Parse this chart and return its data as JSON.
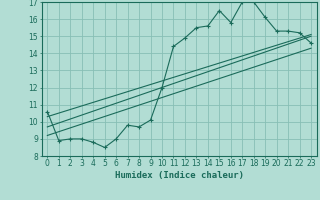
{
  "xlabel": "Humidex (Indice chaleur)",
  "bg_color": "#b2ddd4",
  "grid_color": "#88bfb5",
  "line_color": "#1a6b5a",
  "xlim": [
    -0.5,
    23.5
  ],
  "ylim": [
    8,
    17
  ],
  "xticks": [
    0,
    1,
    2,
    3,
    4,
    5,
    6,
    7,
    8,
    9,
    10,
    11,
    12,
    13,
    14,
    15,
    16,
    17,
    18,
    19,
    20,
    21,
    22,
    23
  ],
  "yticks": [
    8,
    9,
    10,
    11,
    12,
    13,
    14,
    15,
    16,
    17
  ],
  "main_series_x": [
    0,
    1,
    2,
    3,
    4,
    5,
    6,
    7,
    8,
    9,
    10,
    11,
    12,
    13,
    14,
    15,
    16,
    17,
    18,
    19,
    20,
    21,
    22,
    23
  ],
  "main_series_y": [
    10.6,
    8.9,
    9.0,
    9.0,
    8.8,
    8.5,
    9.0,
    9.8,
    9.7,
    10.1,
    12.0,
    14.4,
    14.9,
    15.5,
    15.6,
    16.5,
    15.8,
    17.0,
    17.0,
    16.1,
    15.3,
    15.3,
    15.2,
    14.6
  ],
  "line1_x": [
    0,
    23
  ],
  "line1_y": [
    9.2,
    14.3
  ],
  "line2_x": [
    0,
    23
  ],
  "line2_y": [
    10.3,
    15.1
  ],
  "line3_x": [
    0,
    23
  ],
  "line3_y": [
    9.7,
    15.0
  ]
}
